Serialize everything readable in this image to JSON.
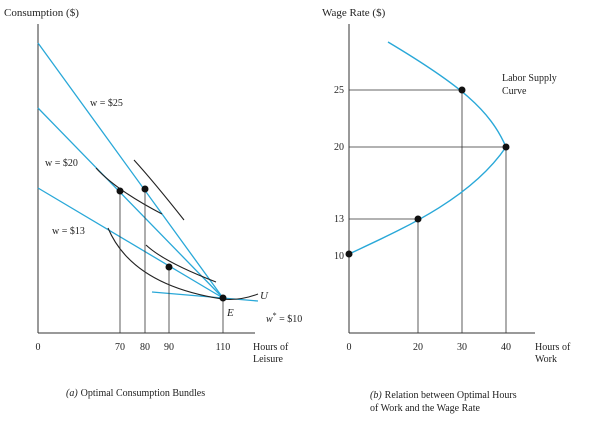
{
  "chart_data": [
    {
      "type": "line",
      "caption_letter": "(a)",
      "caption_text": "Optimal Consumption Bundles",
      "ylabel": "Consumption ($)",
      "xlabel_line1": "Hours of",
      "xlabel_line2": "Leisure",
      "xlim": [
        0,
        150
      ],
      "x_ticks": [
        "0",
        "70",
        "80",
        "90",
        "110"
      ],
      "x_tick_values": [
        0,
        70,
        80,
        90,
        110
      ],
      "endowment_point": {
        "label": "E",
        "x": 110
      },
      "indifference_label": "U",
      "budget_lines": [
        {
          "label": "w = $25",
          "wage": 25,
          "optimum_leisure": 80
        },
        {
          "label": "w = $20",
          "wage": 20,
          "optimum_leisure": 70
        },
        {
          "label": "w = $13",
          "wage": 13,
          "optimum_leisure": 90
        },
        {
          "label_sym": "w",
          "label_sup": "*",
          "label_val": " = $10",
          "wage": 10,
          "optimum_leisure": 110
        }
      ],
      "colors": {
        "budget": "#29a8d8",
        "curve": "#222222"
      }
    },
    {
      "type": "line",
      "caption_letter": "(b)",
      "caption_line1": "Relation between Optimal Hours",
      "caption_line2": "of Work and the Wage Rate",
      "ylabel": "Wage Rate ($)",
      "xlabel_line1": "Hours of",
      "xlabel_line2": "Work",
      "xlim": [
        0,
        50
      ],
      "ylim": [
        5,
        30
      ],
      "x_ticks": [
        "0",
        "20",
        "30",
        "40"
      ],
      "x_tick_values": [
        0,
        20,
        30,
        40
      ],
      "y_ticks": [
        "10",
        "13",
        "20",
        "25"
      ],
      "y_tick_values": [
        10,
        13,
        20,
        25
      ],
      "curve_label_line1": "Labor Supply",
      "curve_label_line2": "Curve",
      "points": [
        {
          "x": 0,
          "y": 10
        },
        {
          "x": 20,
          "y": 13
        },
        {
          "x": 40,
          "y": 20
        },
        {
          "x": 30,
          "y": 25
        }
      ],
      "colors": {
        "curve": "#29a8d8"
      }
    }
  ]
}
